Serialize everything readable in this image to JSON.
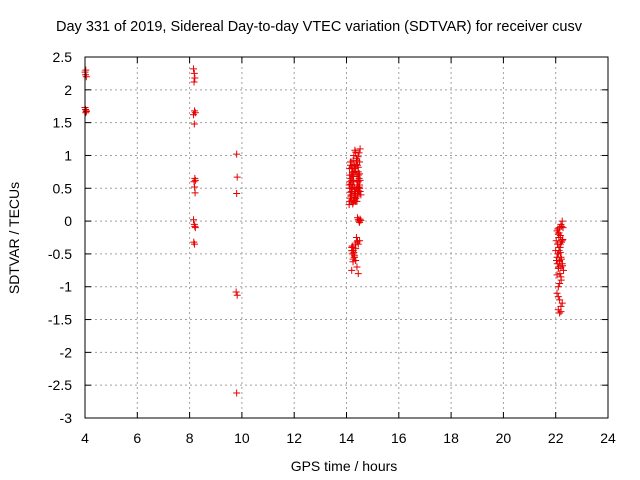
{
  "chart_data": {
    "type": "scatter",
    "title": "Day 331 of 2019, Sidereal Day-to-day VTEC variation (SDTVAR) for receiver cusv",
    "xlabel": "GPS time / hours",
    "ylabel": "SDTVAR / TECUs",
    "xlim": [
      4,
      24
    ],
    "ylim": [
      -3,
      2.5
    ],
    "xticks": [
      4,
      6,
      8,
      10,
      12,
      14,
      16,
      18,
      20,
      22,
      24
    ],
    "yticks": [
      2.5,
      2,
      1.5,
      1,
      0.5,
      0,
      -0.5,
      -1,
      -1.5,
      -2,
      -2.5,
      -3
    ],
    "xtick_labels": [
      "4",
      "6",
      "8",
      "10",
      "12",
      "14",
      "16",
      "18",
      "20",
      "22",
      "24"
    ],
    "ytick_labels": [
      "2.5",
      "2",
      "1.5",
      "1",
      "0.5",
      "0",
      "-0.5",
      "-1",
      "-1.5",
      "-2",
      "-2.5",
      "-3"
    ],
    "grid": true,
    "marker": "+",
    "color": "#e60000",
    "series": [
      {
        "name": "SDTVAR",
        "x": [
          4.0,
          4.02,
          4.05,
          4.03,
          4.0,
          4.02,
          4.05,
          4.03,
          4.05,
          8.15,
          8.18,
          8.2,
          8.17,
          8.19,
          8.22,
          8.15,
          8.18,
          8.2,
          8.22,
          8.17,
          8.19,
          8.21,
          8.15,
          8.18,
          8.2,
          8.22,
          8.16,
          8.19,
          9.8,
          9.82,
          9.8,
          9.78,
          9.82,
          9.8,
          14.1,
          14.12,
          14.15,
          14.18,
          14.2,
          14.22,
          14.1,
          14.13,
          14.16,
          14.2,
          14.23,
          14.12,
          14.15,
          14.18,
          14.21,
          14.24,
          14.27,
          14.3,
          14.33,
          14.36,
          14.4,
          14.43,
          14.46,
          14.5,
          14.48,
          14.45,
          14.42,
          14.38,
          14.35,
          14.32,
          14.28,
          14.25,
          14.3,
          14.35,
          14.4,
          14.45,
          14.5,
          14.52,
          14.55,
          14.5,
          14.47,
          14.44,
          14.4,
          14.36,
          14.33,
          14.3,
          14.27,
          14.24,
          14.2,
          14.17,
          14.14,
          14.12,
          14.16,
          14.2,
          14.24,
          14.28,
          14.32,
          14.36,
          14.4,
          14.44,
          14.48,
          14.52,
          14.5,
          14.45,
          14.4,
          14.35,
          14.3,
          14.25,
          14.2,
          14.15,
          14.12,
          14.18,
          14.24,
          14.3,
          14.36,
          14.42,
          14.48,
          14.52,
          14.5,
          14.45,
          14.4,
          14.35,
          14.3,
          14.25,
          14.2,
          14.22,
          14.25,
          14.28,
          14.42,
          14.45,
          14.48,
          14.5,
          14.52,
          14.55,
          14.5,
          14.45,
          14.2,
          14.25,
          14.3,
          14.35,
          14.4,
          14.45,
          14.2,
          14.25,
          14.3,
          14.35,
          14.4,
          14.22,
          14.26,
          14.3,
          14.34,
          14.38,
          14.42,
          22.0,
          22.05,
          22.1,
          22.15,
          22.2,
          22.25,
          22.3,
          22.02,
          22.07,
          22.12,
          22.17,
          22.22,
          22.27,
          22.05,
          22.1,
          22.15,
          22.2,
          22.25,
          22.08,
          22.13,
          22.18,
          22.23,
          22.28,
          22.06,
          22.11,
          22.16,
          22.21,
          22.1,
          22.15,
          22.2,
          22.05,
          22.1,
          22.15,
          22.2,
          22.25,
          22.1,
          22.15,
          22.2,
          22.03,
          22.08,
          22.13,
          22.18,
          22.25,
          22.2,
          22.15,
          22.1,
          22.05,
          22.12,
          22.18,
          22.22,
          22.26
        ],
        "y": [
          2.27,
          2.23,
          2.2,
          2.3,
          1.73,
          1.7,
          1.68,
          1.65,
          1.67,
          2.32,
          2.25,
          2.18,
          2.12,
          1.68,
          1.65,
          1.62,
          1.48,
          0.65,
          0.62,
          0.6,
          0.52,
          0.43,
          0.02,
          -0.05,
          -0.08,
          -0.1,
          -0.32,
          -0.35,
          1.02,
          0.67,
          0.42,
          -1.08,
          -1.13,
          -2.62,
          0.25,
          0.3,
          0.35,
          0.4,
          0.45,
          0.5,
          0.55,
          0.6,
          0.65,
          0.7,
          0.75,
          0.8,
          0.85,
          0.9,
          0.82,
          0.72,
          0.62,
          0.52,
          0.42,
          0.35,
          0.3,
          0.38,
          0.46,
          0.55,
          0.65,
          0.75,
          0.85,
          0.95,
          1.05,
          1.08,
          1.0,
          0.92,
          0.84,
          0.76,
          0.68,
          0.6,
          0.5,
          0.45,
          0.4,
          0.45,
          0.5,
          0.55,
          0.6,
          0.48,
          0.42,
          0.36,
          0.3,
          0.26,
          0.32,
          0.38,
          0.44,
          0.5,
          0.56,
          0.62,
          0.68,
          0.74,
          0.8,
          0.86,
          0.92,
          0.98,
          1.04,
          1.1,
          0.9,
          0.7,
          0.5,
          0.3,
          0.4,
          0.6,
          0.8,
          0.9,
          0.7,
          0.5,
          0.55,
          0.45,
          0.35,
          0.42,
          0.52,
          0.62,
          0.72,
          0.82,
          0.62,
          0.42,
          0.32,
          0.28,
          -0.4,
          -0.5,
          -0.58,
          -0.48,
          0.05,
          0.02,
          0.0,
          -0.02,
          0.03,
          0.01,
          -0.3,
          -0.35,
          -0.45,
          -0.4,
          -0.55,
          -0.6,
          -0.7,
          -0.8,
          -0.75,
          -0.62,
          -0.52,
          -0.42,
          -0.32,
          -0.38,
          -0.45,
          -0.55,
          -0.35,
          -0.25,
          -0.3,
          -0.45,
          -0.55,
          -0.5,
          -0.6,
          -0.7,
          -0.65,
          -0.75,
          -0.3,
          -0.35,
          -0.25,
          -0.4,
          -0.32,
          -0.28,
          -0.15,
          -0.2,
          -0.1,
          -0.05,
          0.0,
          -0.12,
          -0.18,
          -0.22,
          -0.08,
          -0.1,
          -0.65,
          -0.7,
          -0.8,
          -0.9,
          -1.0,
          -0.95,
          -0.85,
          -1.1,
          -1.15,
          -1.2,
          -1.3,
          -1.25,
          -1.35,
          -1.4,
          -1.38,
          -0.6,
          -0.5,
          -0.45,
          -0.35,
          -0.3,
          -0.55,
          -0.62,
          -0.72,
          -0.82,
          -0.4,
          -0.48,
          -0.58,
          -0.68
        ]
      }
    ]
  }
}
